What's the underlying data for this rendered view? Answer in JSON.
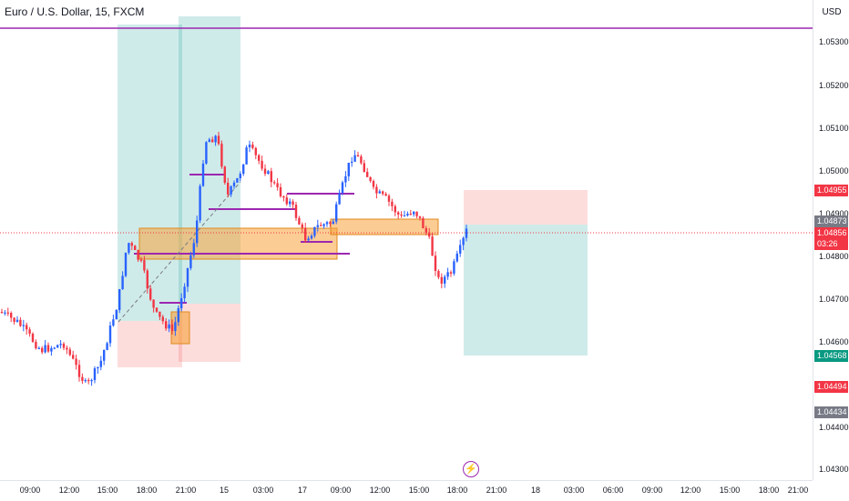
{
  "symbol_title": "Euro / U.S. Dollar, 15, FXCM",
  "price_axis": {
    "currency": "USD",
    "ticks": [
      "1.05300",
      "1.05200",
      "1.05100",
      "1.05000",
      "1.04900",
      "1.04800",
      "1.04700",
      "1.04600",
      "1.04400",
      "1.04300"
    ]
  },
  "price_badges": [
    {
      "id": "badge-1",
      "label": "1.04955",
      "color": "#f23645"
    },
    {
      "id": "badge-2",
      "label": "1.04873",
      "color": "#787b86"
    },
    {
      "id": "badge-3",
      "label": "1.04856",
      "color": "#f23645"
    },
    {
      "id": "badge-4",
      "label": "03:26",
      "color": "#f23645"
    },
    {
      "id": "badge-5",
      "label": "1.04568",
      "color": "#089981"
    },
    {
      "id": "badge-6",
      "label": "1.04494",
      "color": "#f23645"
    },
    {
      "id": "badge-7",
      "label": "1.04434",
      "color": "#787b86"
    }
  ],
  "time_axis": {
    "ticks": [
      "09:00",
      "12:00",
      "15:00",
      "18:00",
      "21:00",
      "15",
      "03:00",
      "17",
      "09:00",
      "12:00",
      "15:00",
      "18:00",
      "21:00",
      "18",
      "03:00",
      "06:00",
      "09:00",
      "12:00",
      "15:00",
      "18:00",
      "21:00"
    ]
  },
  "flash_icon": "lightning-icon",
  "colors": {
    "up": "#2962ff",
    "down": "#f23645",
    "level_line": "#9c27b0",
    "long_zone": "#26a69a",
    "short_zone": "#ef5350",
    "order_block": "#f7a23a"
  }
}
